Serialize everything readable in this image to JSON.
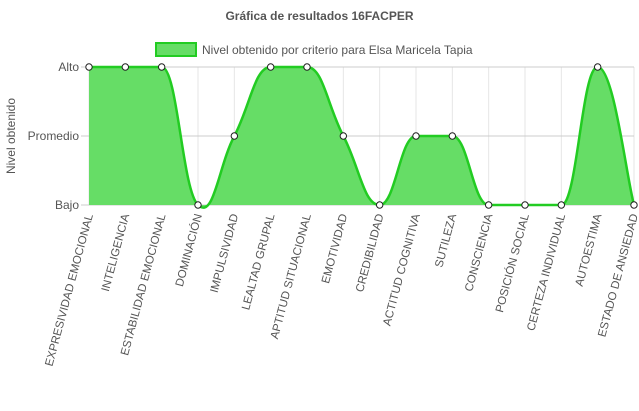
{
  "chart_data": {
    "type": "area",
    "title": "Gráfica de resultados 16FACPER",
    "ylabel": "Nivel obtenido",
    "xlabel": "",
    "y_levels": [
      "Bajo",
      "Promedio",
      "Alto"
    ],
    "ylim": [
      0,
      2
    ],
    "grid": true,
    "legend_position": "top-center",
    "categories": [
      "EXPRESIVIDAD EMOCIONAL",
      "INTELIGENCIA",
      "ESTABILIDAD EMOCIONAL",
      "DOMINACIÓN",
      "IMPULSIVIDAD",
      "LEALTAD GRUPAL",
      "APTITUD SITUACIONAL",
      "EMOTIVIDAD",
      "CREDIBILIDAD",
      "ACTITUD COGNITIVA",
      "SUTILEZA",
      "CONSCIENCIA",
      "POSICIÓN SOCIAL",
      "CERTEZA INDIVIDUAL",
      "AUTOESTIMA",
      "ESTADO DE ANSIEDAD"
    ],
    "series": [
      {
        "name": "Nivel obtenido por criterio para Elsa Maricela Tapia",
        "values": [
          2,
          2,
          2,
          0,
          1,
          2,
          2,
          1,
          0,
          1,
          1,
          0,
          0,
          0,
          2,
          0
        ],
        "fill_color": "#66dd66",
        "line_color": "#22cc22"
      }
    ]
  }
}
